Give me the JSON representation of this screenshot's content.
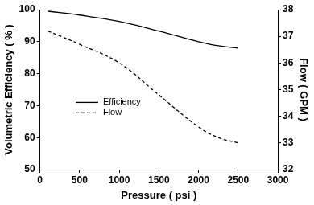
{
  "chart_data": {
    "type": "line",
    "x_label": "Pressure ( psi )",
    "y_label": "Volumetric Efficiency ( % )",
    "y2_label": "Flow ( GPM )",
    "x": [
      100,
      500,
      1000,
      1500,
      2000,
      2250,
      2500
    ],
    "series": [
      {
        "name": "Efficiency",
        "color": "#000000",
        "line_style": "solid",
        "axis": "y",
        "values": [
          99.5,
          98.3,
          96.3,
          93.3,
          90.0,
          88.7,
          88.0
        ]
      },
      {
        "name": "Flow",
        "color": "#000000",
        "line_style": "dashed",
        "axis": "y2",
        "values": [
          37.2,
          36.7,
          36.0,
          34.8,
          33.6,
          33.2,
          33.0
        ]
      }
    ],
    "xlim": [
      0,
      3000
    ],
    "xticks": [
      0,
      500,
      1000,
      1500,
      2000,
      2500,
      3000
    ],
    "ylim": [
      50,
      100
    ],
    "yticks": [
      50,
      60,
      70,
      80,
      90,
      100
    ],
    "y2lim": [
      32,
      38
    ],
    "y2ticks": [
      32,
      33,
      34,
      35,
      36,
      37,
      38
    ],
    "grid": false,
    "legend": "lower left"
  }
}
